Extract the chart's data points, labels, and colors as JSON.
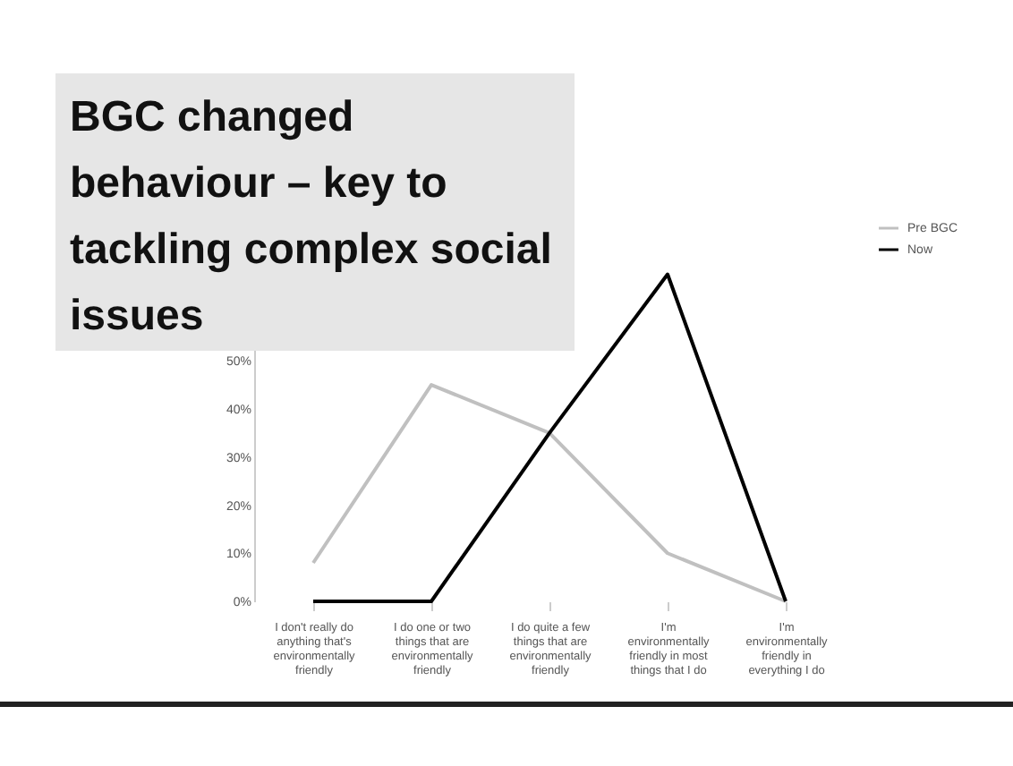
{
  "chart_data": {
    "type": "line",
    "title": "BGC changed behaviour – key to tackling complex social issues",
    "categories": [
      "I don't really do anything that's environmentally friendly",
      "I do one or two things that are environmentally friendly",
      "I do quite a few things that are environmentally friendly",
      "I'm environmentally friendly in most things that I do",
      "I'm environmentally friendly in everything I do"
    ],
    "series": [
      {
        "name": "Pre BGC",
        "color": "#c0c0c0",
        "values": [
          8,
          45,
          35,
          10,
          0
        ]
      },
      {
        "name": "Now",
        "color": "#000000",
        "values": [
          0,
          0,
          35,
          68,
          0
        ]
      }
    ],
    "ylim": [
      0,
      80
    ],
    "yticks": [
      {
        "value": 0,
        "label": "0%"
      },
      {
        "value": 10,
        "label": "10%"
      },
      {
        "value": 20,
        "label": "20%"
      },
      {
        "value": 30,
        "label": "30%"
      },
      {
        "value": 40,
        "label": "40%"
      },
      {
        "value": 50,
        "label": "50%"
      }
    ],
    "legend": "right",
    "grid": false,
    "marker": "none",
    "line_style": "solid"
  }
}
